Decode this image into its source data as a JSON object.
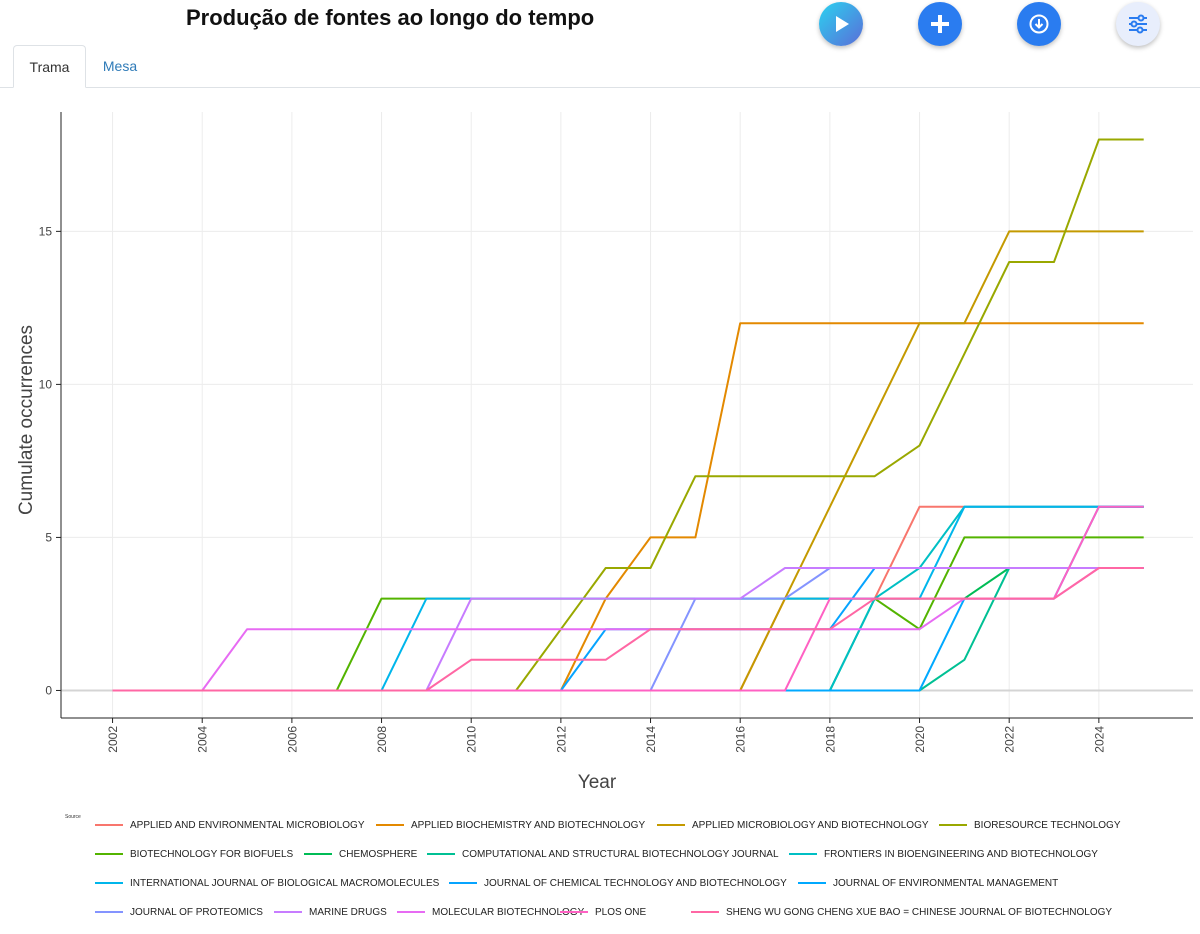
{
  "header": {
    "title": "Produção de fontes ao longo do tempo",
    "buttons": [
      {
        "name": "play-button",
        "icon": "play-icon"
      },
      {
        "name": "add-button",
        "icon": "plus-icon"
      },
      {
        "name": "download-button",
        "icon": "download-icon"
      },
      {
        "name": "settings-button",
        "icon": "sliders-icon"
      }
    ]
  },
  "tabs": [
    {
      "label": "Trama",
      "active": true
    },
    {
      "label": "Mesa",
      "active": false
    }
  ],
  "chart_data": {
    "type": "line",
    "xlabel": "Year",
    "ylabel": "Cumulate occurrences",
    "xlim": [
      2000.85,
      2026.1
    ],
    "ylim": [
      -0.9,
      18.9
    ],
    "x_ticks": [
      2002,
      2004,
      2006,
      2008,
      2010,
      2012,
      2014,
      2016,
      2018,
      2020,
      2022,
      2024
    ],
    "y_ticks": [
      0,
      5,
      10,
      15
    ],
    "grid": true,
    "legend_title": "Source",
    "legend_position": "bottom",
    "x": [
      2002,
      2003,
      2004,
      2005,
      2006,
      2007,
      2008,
      2009,
      2010,
      2011,
      2012,
      2013,
      2014,
      2015,
      2016,
      2017,
      2018,
      2019,
      2020,
      2021,
      2022,
      2023,
      2024,
      2025
    ],
    "series": [
      {
        "name": "APPLIED AND ENVIRONMENTAL MICROBIOLOGY",
        "color": "#F8766D",
        "values": [
          0,
          0,
          0,
          0,
          0,
          0,
          0,
          0,
          0,
          0,
          0,
          0,
          0,
          0,
          0,
          3,
          3,
          3,
          6,
          6,
          6,
          6,
          6,
          6
        ]
      },
      {
        "name": "APPLIED BIOCHEMISTRY AND BIOTECHNOLOGY",
        "color": "#E38900",
        "values": [
          0,
          0,
          0,
          0,
          0,
          0,
          0,
          0,
          0,
          0,
          0,
          3,
          5,
          5,
          12,
          12,
          12,
          12,
          12,
          12,
          12,
          12,
          12,
          12
        ]
      },
      {
        "name": "APPLIED MICROBIOLOGY AND BIOTECHNOLOGY",
        "color": "#C49A00",
        "values": [
          0,
          0,
          0,
          0,
          0,
          0,
          0,
          0,
          0,
          0,
          0,
          0,
          0,
          0,
          0,
          3,
          6,
          9,
          12,
          12,
          15,
          15,
          15,
          15
        ]
      },
      {
        "name": "BIORESOURCE TECHNOLOGY",
        "color": "#99A800",
        "values": [
          0,
          0,
          0,
          0,
          0,
          0,
          0,
          0,
          0,
          0,
          2,
          4,
          4,
          7,
          7,
          7,
          7,
          7,
          8,
          11,
          14,
          14,
          18,
          18
        ]
      },
      {
        "name": "BIOTECHNOLOGY FOR BIOFUELS",
        "color": "#53B400",
        "values": [
          0,
          0,
          0,
          0,
          0,
          0,
          3,
          3,
          3,
          3,
          3,
          3,
          3,
          3,
          3,
          3,
          3,
          3,
          2,
          5,
          5,
          5,
          5,
          5
        ]
      },
      {
        "name": "CHEMOSPHERE",
        "color": "#00BC56",
        "values": [
          0,
          0,
          0,
          0,
          0,
          0,
          0,
          0,
          0,
          0,
          0,
          0,
          0,
          0,
          0,
          0,
          0,
          3,
          3,
          3,
          4,
          4,
          4,
          4
        ]
      },
      {
        "name": "COMPUTATIONAL AND STRUCTURAL BIOTECHNOLOGY JOURNAL",
        "color": "#00C094",
        "values": [
          0,
          0,
          0,
          0,
          0,
          0,
          0,
          0,
          0,
          0,
          0,
          0,
          0,
          0,
          0,
          0,
          0,
          0,
          0,
          1,
          4,
          4,
          4,
          4
        ]
      },
      {
        "name": "FRONTIERS IN BIOENGINEERING AND BIOTECHNOLOGY",
        "color": "#00BFC4",
        "values": [
          0,
          0,
          0,
          0,
          0,
          0,
          0,
          0,
          0,
          0,
          0,
          0,
          0,
          0,
          0,
          0,
          0,
          3,
          4,
          6,
          6,
          6,
          6,
          6
        ]
      },
      {
        "name": "INTERNATIONAL JOURNAL OF BIOLOGICAL MACROMOLECULES",
        "color": "#00B6EB",
        "values": [
          0,
          0,
          0,
          0,
          0,
          0,
          0,
          3,
          3,
          3,
          3,
          3,
          3,
          3,
          3,
          3,
          3,
          3,
          3,
          6,
          6,
          6,
          6,
          6
        ]
      },
      {
        "name": "JOURNAL OF CHEMICAL TECHNOLOGY AND BIOTECHNOLOGY",
        "color": "#06A4FF",
        "values": [
          0,
          0,
          0,
          0,
          0,
          0,
          0,
          0,
          0,
          0,
          0,
          2,
          2,
          2,
          2,
          2,
          2,
          4,
          4,
          4,
          4,
          4,
          4,
          4
        ]
      },
      {
        "name": "JOURNAL OF ENVIRONMENTAL MANAGEMENT",
        "color": "#00A9FF",
        "values": [
          0,
          0,
          0,
          0,
          0,
          0,
          0,
          0,
          0,
          0,
          0,
          0,
          0,
          0,
          0,
          0,
          0,
          0,
          0,
          3,
          3,
          3,
          6,
          6
        ]
      },
      {
        "name": "JOURNAL OF PROTEOMICS",
        "color": "#8494FF",
        "values": [
          0,
          0,
          0,
          0,
          0,
          0,
          0,
          0,
          0,
          0,
          0,
          0,
          0,
          3,
          3,
          3,
          4,
          4,
          4,
          4,
          4,
          4,
          4,
          4
        ]
      },
      {
        "name": "MARINE DRUGS",
        "color": "#C77CFF",
        "values": [
          0,
          0,
          0,
          0,
          0,
          0,
          0,
          0,
          3,
          3,
          3,
          3,
          3,
          3,
          3,
          4,
          4,
          4,
          4,
          4,
          4,
          4,
          4,
          4
        ]
      },
      {
        "name": "MOLECULAR BIOTECHNOLOGY",
        "color": "#E76BF3",
        "values": [
          0,
          0,
          0,
          2,
          2,
          2,
          2,
          2,
          2,
          2,
          2,
          2,
          2,
          2,
          2,
          2,
          2,
          2,
          2,
          3,
          3,
          3,
          4,
          4
        ]
      },
      {
        "name": "PLOS ONE",
        "color": "#FF61C3",
        "values": [
          0,
          0,
          0,
          0,
          0,
          0,
          0,
          0,
          0,
          0,
          0,
          0,
          0,
          0,
          0,
          0,
          3,
          3,
          3,
          3,
          3,
          3,
          6,
          6
        ]
      },
      {
        "name": "SHENG WU GONG CHENG XUE BAO = CHINESE JOURNAL OF BIOTECHNOLOGY",
        "color": "#FF67A4",
        "values": [
          0,
          0,
          0,
          0,
          0,
          0,
          0,
          0,
          1,
          1,
          1,
          1,
          2,
          2,
          2,
          2,
          2,
          3,
          3,
          3,
          3,
          3,
          4,
          4
        ]
      }
    ]
  }
}
